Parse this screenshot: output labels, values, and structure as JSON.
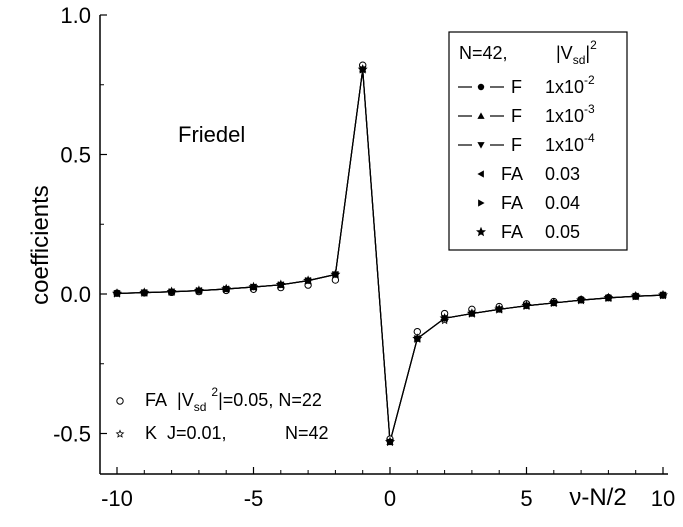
{
  "chart_data": {
    "type": "line",
    "xlabel": "ν-N/2",
    "ylabel": "coefficients",
    "xlim": [
      -10,
      10
    ],
    "ylim": [
      -0.62,
      1.0
    ],
    "x_ticks": [
      "-10",
      "-5",
      "0",
      "5",
      "10"
    ],
    "x_tick_values": [
      -10,
      -5,
      0,
      5,
      10
    ],
    "y_ticks": [
      "1.0",
      "0.5",
      "0.0",
      "-0.5"
    ],
    "y_tick_values": [
      1.0,
      0.5,
      0.0,
      -0.5
    ],
    "grid": false,
    "annotation": "Friedel",
    "legend_position": "top-right",
    "legend_header": {
      "left": "N=42,",
      "right_main": "|V",
      "right_sub": "sd",
      "right_sup": "2",
      "right_close": "|"
    },
    "x": [
      -10,
      -9,
      -8,
      -7,
      -6,
      -5,
      -4,
      -3,
      -2,
      -1,
      0,
      1,
      2,
      3,
      4,
      5,
      6,
      7,
      8,
      9,
      10
    ],
    "series": [
      {
        "label_main": "F",
        "label_value": "1x10",
        "label_exp": "-2",
        "marker": "circle-filled",
        "line": true,
        "values": [
          0.002,
          0.005,
          0.008,
          0.012,
          0.018,
          0.025,
          0.033,
          0.048,
          0.07,
          0.805,
          -0.53,
          -0.16,
          -0.087,
          -0.07,
          -0.055,
          -0.042,
          -0.032,
          -0.022,
          -0.014,
          -0.008,
          -0.004
        ]
      },
      {
        "label_main": "F",
        "label_value": "1x10",
        "label_exp": "-3",
        "marker": "triangle-up",
        "line": true,
        "values": [
          0.002,
          0.005,
          0.008,
          0.012,
          0.018,
          0.025,
          0.033,
          0.048,
          0.07,
          0.805,
          -0.53,
          -0.16,
          -0.087,
          -0.07,
          -0.055,
          -0.042,
          -0.032,
          -0.022,
          -0.014,
          -0.008,
          -0.004
        ]
      },
      {
        "label_main": "F",
        "label_value": "1x10",
        "label_exp": "-4",
        "marker": "triangle-down",
        "line": true,
        "values": [
          0.002,
          0.005,
          0.008,
          0.012,
          0.018,
          0.025,
          0.033,
          0.048,
          0.07,
          0.805,
          -0.53,
          -0.16,
          -0.087,
          -0.07,
          -0.055,
          -0.042,
          -0.032,
          -0.022,
          -0.014,
          -0.008,
          -0.004
        ]
      },
      {
        "label_main": "FA",
        "label_value": "0.03",
        "marker": "triangle-left",
        "line": false,
        "values": [
          0.002,
          0.005,
          0.008,
          0.012,
          0.018,
          0.025,
          0.033,
          0.048,
          0.07,
          0.805,
          -0.53,
          -0.16,
          -0.087,
          -0.07,
          -0.055,
          -0.042,
          -0.032,
          -0.022,
          -0.014,
          -0.008,
          -0.004
        ]
      },
      {
        "label_main": "FA",
        "label_value": "0.04",
        "marker": "triangle-right",
        "line": false,
        "values": [
          0.002,
          0.005,
          0.008,
          0.012,
          0.018,
          0.025,
          0.033,
          0.048,
          0.07,
          0.805,
          -0.53,
          -0.16,
          -0.087,
          -0.07,
          -0.055,
          -0.042,
          -0.032,
          -0.022,
          -0.014,
          -0.008,
          -0.004
        ]
      },
      {
        "label_main": "FA",
        "label_value": "0.05",
        "marker": "star",
        "line": false,
        "values": [
          0.002,
          0.005,
          0.008,
          0.012,
          0.018,
          0.025,
          0.033,
          0.048,
          0.07,
          0.805,
          -0.53,
          -0.16,
          -0.087,
          -0.07,
          -0.055,
          -0.042,
          -0.032,
          -0.022,
          -0.014,
          -0.008,
          -0.004
        ]
      }
    ],
    "extra_series": [
      {
        "id": "fa22",
        "label_main": "FA",
        "label_abs": "|V",
        "label_sub": "sd",
        "label_sup": "2",
        "label_rest": "|=0.05, N=22",
        "marker": "circle-open",
        "line": false,
        "values": [
          0.003,
          0.004,
          0.006,
          0.009,
          0.013,
          0.017,
          0.023,
          0.032,
          0.05,
          0.82,
          -0.52,
          -0.135,
          -0.07,
          -0.055,
          -0.045,
          -0.035,
          -0.027,
          -0.02,
          -0.013,
          -0.008,
          -0.004
        ]
      },
      {
        "id": "k42",
        "label_main": "K",
        "label_param": "J=0.01,",
        "label_n": "N=42",
        "marker": "star-small",
        "line": false,
        "values": [
          0.002,
          0.005,
          0.008,
          0.012,
          0.018,
          0.025,
          0.033,
          0.048,
          0.07,
          0.805,
          -0.53,
          -0.16,
          -0.095,
          -0.07,
          -0.055,
          -0.042,
          -0.032,
          -0.022,
          -0.014,
          -0.008,
          -0.004
        ]
      }
    ]
  }
}
